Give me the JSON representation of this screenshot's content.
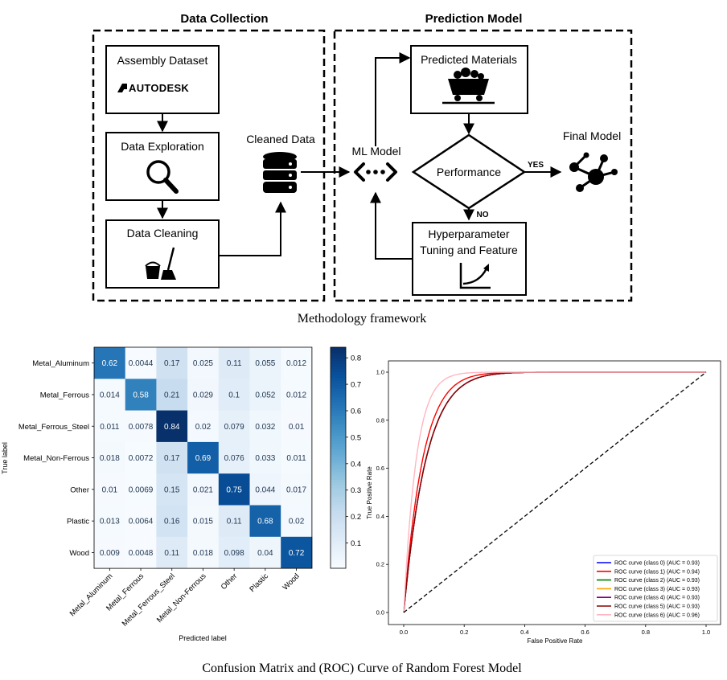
{
  "framework": {
    "data_collection_title": "Data Collection",
    "prediction_model_title": "Prediction Model",
    "assembly_dataset": "Assembly Dataset",
    "autodesk_logo_text": "AUTODESK",
    "data_exploration": "Data Exploration",
    "data_cleaning": "Data Cleaning",
    "cleaned_data": "Cleaned Data",
    "ml_model": "ML Model",
    "predicted_materials": "Predicted Materials",
    "performance": "Performance",
    "yes": "YES",
    "no": "NO",
    "final_model": "Final Model",
    "hyperparameter_line1": "Hyperparameter",
    "hyperparameter_line2": "Tuning and Feature",
    "caption": "Methodology framework",
    "icons": [
      "search-icon",
      "bucket-broom-icon",
      "database-icon",
      "network-icon",
      "mine-cart-icon",
      "molecule-icon",
      "growth-curve-icon"
    ]
  },
  "bottom_caption": "Confusion Matrix and (ROC) Curve of Random Forest Model",
  "chart_data": [
    {
      "type": "heatmap",
      "xlabel": "Predicted label",
      "ylabel": "True label",
      "labels": [
        "Metal_Aluminum",
        "Metal_Ferrous",
        "Metal_Ferrous_Steel",
        "Metal_Non-Ferrous",
        "Other",
        "Plastic",
        "Wood"
      ],
      "matrix": [
        [
          "0.62",
          "0.0044",
          "0.17",
          "0.025",
          "0.11",
          "0.055",
          "0.012"
        ],
        [
          "0.014",
          "0.58",
          "0.21",
          "0.029",
          "0.1",
          "0.052",
          "0.012"
        ],
        [
          "0.011",
          "0.0078",
          "0.84",
          "0.02",
          "0.079",
          "0.032",
          "0.01"
        ],
        [
          "0.018",
          "0.0072",
          "0.17",
          "0.69",
          "0.076",
          "0.033",
          "0.011"
        ],
        [
          "0.01",
          "0.0069",
          "0.15",
          "0.021",
          "0.75",
          "0.044",
          "0.017"
        ],
        [
          "0.013",
          "0.0064",
          "0.16",
          "0.015",
          "0.11",
          "0.68",
          "0.02"
        ],
        [
          "0.009",
          "0.0048",
          "0.11",
          "0.018",
          "0.098",
          "0.04",
          "0.72"
        ]
      ],
      "colorbar_ticks": [
        "0.1",
        "0.2",
        "0.3",
        "0.4",
        "0.5",
        "0.6",
        "0.7",
        "0.8"
      ],
      "colorbar_range": [
        0.0044,
        0.84
      ],
      "colormap": "Blues"
    },
    {
      "type": "line",
      "xlabel": "False Positive Rate",
      "ylabel": "True Positive Rate",
      "xlim": [
        0,
        1
      ],
      "ylim": [
        0,
        1
      ],
      "xticks": [
        "0.0",
        "0.2",
        "0.4",
        "0.6",
        "0.8",
        "1.0"
      ],
      "yticks": [
        "0.0",
        "0.2",
        "0.4",
        "0.6",
        "0.8",
        "1.0"
      ],
      "legend_position": "bottom-right",
      "series": [
        {
          "name": "ROC curve (class 0) (AUC = 0.93)",
          "color": "#0000ff",
          "auc": 0.93
        },
        {
          "name": "ROC curve (class 1) (AUC = 0.94)",
          "color": "#ff0000",
          "auc": 0.94
        },
        {
          "name": "ROC curve (class 2) (AUC = 0.93)",
          "color": "#008000",
          "auc": 0.93
        },
        {
          "name": "ROC curve (class 3) (AUC = 0.93)",
          "color": "#ffa500",
          "auc": 0.93
        },
        {
          "name": "ROC curve (class 4) (AUC = 0.93)",
          "color": "#800080",
          "auc": 0.93
        },
        {
          "name": "ROC curve (class 5) (AUC = 0.93)",
          "color": "#8b0000",
          "auc": 0.93
        },
        {
          "name": "ROC curve (class 6) (AUC = 0.96)",
          "color": "#ffb6c1",
          "auc": 0.96
        }
      ],
      "chance_line": {
        "x": [
          0,
          1
        ],
        "y": [
          0,
          1
        ],
        "color": "#000000",
        "style": "dashed"
      }
    }
  ]
}
